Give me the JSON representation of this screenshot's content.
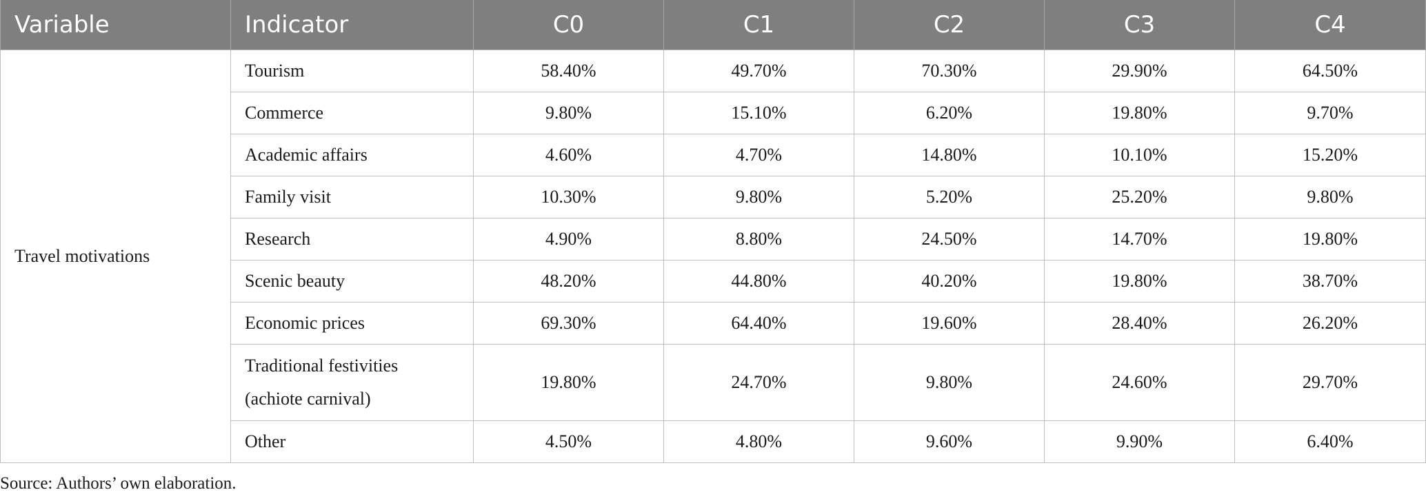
{
  "table": {
    "headers": [
      "Variable",
      "Indicator",
      "C0",
      "C1",
      "C2",
      "C3",
      "C4"
    ],
    "variable": "Travel motivations",
    "rows": [
      {
        "indicator": "Tourism",
        "values": [
          "58.40%",
          "49.70%",
          "70.30%",
          "29.90%",
          "64.50%"
        ]
      },
      {
        "indicator": "Commerce",
        "values": [
          "9.80%",
          "15.10%",
          "6.20%",
          "19.80%",
          "9.70%"
        ]
      },
      {
        "indicator": "Academic affairs",
        "values": [
          "4.60%",
          "4.70%",
          "14.80%",
          "10.10%",
          "15.20%"
        ]
      },
      {
        "indicator": "Family visit",
        "values": [
          "10.30%",
          "9.80%",
          "5.20%",
          "25.20%",
          "9.80%"
        ]
      },
      {
        "indicator": "Research",
        "values": [
          "4.90%",
          "8.80%",
          "24.50%",
          "14.70%",
          "19.80%"
        ]
      },
      {
        "indicator": "Scenic beauty",
        "values": [
          "48.20%",
          "44.80%",
          "40.20%",
          "19.80%",
          "38.70%"
        ]
      },
      {
        "indicator": "Economic prices",
        "values": [
          "69.30%",
          "64.40%",
          "19.60%",
          "28.40%",
          "26.20%"
        ]
      },
      {
        "indicator_line1": "Traditional festivities",
        "indicator_line2": "(achiote carnival)",
        "values": [
          "19.80%",
          "24.70%",
          "9.80%",
          "24.60%",
          "29.70%"
        ]
      },
      {
        "indicator": "Other",
        "values": [
          "4.50%",
          "4.80%",
          "9.60%",
          "9.90%",
          "6.40%"
        ]
      }
    ]
  },
  "source": "Source: Authors’ own elaboration."
}
